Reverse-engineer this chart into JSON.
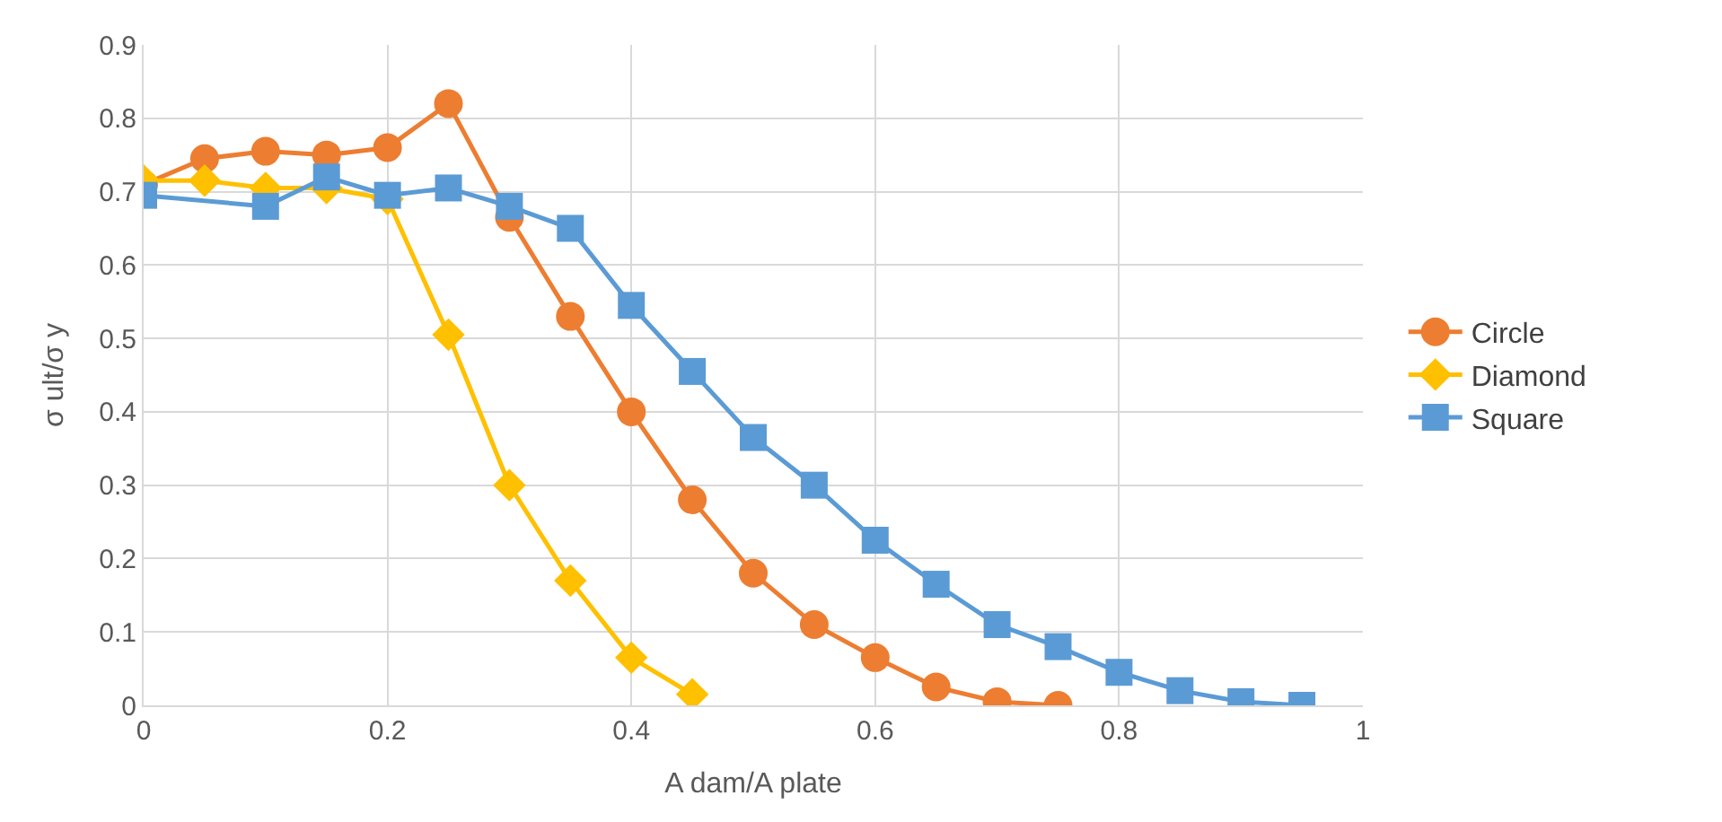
{
  "chart_data": {
    "type": "line",
    "xlabel": "A dam/A plate",
    "ylabel": "σ ult/σ y",
    "xlim": [
      0,
      1
    ],
    "xticks": [
      0,
      0.2,
      0.4,
      0.6,
      0.8,
      1
    ],
    "ylim": [
      0,
      0.9
    ],
    "yticks": [
      0,
      0.1,
      0.2,
      0.3,
      0.4,
      0.5,
      0.6,
      0.7,
      0.8,
      0.9
    ],
    "grid": true,
    "legend": "right",
    "series": [
      {
        "name": "Circle",
        "color": "#ed7d31",
        "marker": "circle",
        "x": [
          0,
          0.05,
          0.1,
          0.15,
          0.2,
          0.25,
          0.3,
          0.35,
          0.4,
          0.45,
          0.5,
          0.55,
          0.6,
          0.65,
          0.7,
          0.75
        ],
        "values": [
          0.71,
          0.745,
          0.755,
          0.75,
          0.76,
          0.82,
          0.665,
          0.53,
          0.4,
          0.28,
          0.18,
          0.11,
          0.065,
          0.025,
          0.005,
          0.0
        ]
      },
      {
        "name": "Diamond",
        "color": "#ffc000",
        "marker": "diamond",
        "x": [
          0,
          0.05,
          0.1,
          0.15,
          0.2,
          0.25,
          0.3,
          0.35,
          0.4,
          0.45
        ],
        "values": [
          0.715,
          0.715,
          0.705,
          0.705,
          0.69,
          0.505,
          0.3,
          0.17,
          0.065,
          0.015
        ]
      },
      {
        "name": "Square",
        "color": "#5b9bd5",
        "marker": "square",
        "x": [
          0,
          0.1,
          0.15,
          0.2,
          0.25,
          0.3,
          0.35,
          0.4,
          0.45,
          0.5,
          0.55,
          0.6,
          0.65,
          0.7,
          0.75,
          0.8,
          0.85,
          0.9,
          0.95
        ],
        "values": [
          0.695,
          0.68,
          0.72,
          0.695,
          0.705,
          0.68,
          0.65,
          0.545,
          0.455,
          0.365,
          0.3,
          0.225,
          0.165,
          0.11,
          0.08,
          0.045,
          0.02,
          0.005,
          0.0
        ]
      }
    ]
  }
}
